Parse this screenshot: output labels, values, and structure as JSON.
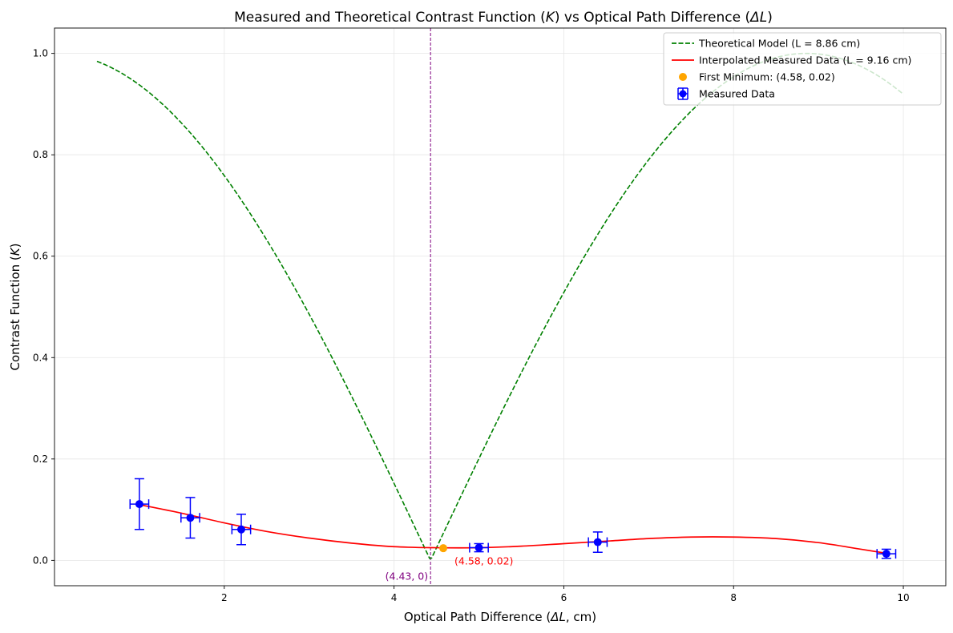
{
  "chart_data": {
    "type": "line",
    "title": "Measured and Theoretical Contrast Function (K) vs Optical Path Difference (ΔL)",
    "xlabel": "Optical Path Difference (ΔL, cm)",
    "ylabel": "Contrast Function (K)",
    "xlim": [
      0.0,
      10.5
    ],
    "ylim": [
      -0.05,
      1.05
    ],
    "x_ticks": [
      2,
      4,
      6,
      8,
      10
    ],
    "x_tick_labels": [
      "2",
      "4",
      "6",
      "8",
      "10"
    ],
    "y_ticks": [
      0.0,
      0.2,
      0.4,
      0.6,
      0.8,
      1.0
    ],
    "y_tick_labels": [
      "0.0",
      "0.2",
      "0.4",
      "0.6",
      "0.8",
      "1.0"
    ],
    "grid": true,
    "legend_position": "top-right",
    "series": [
      {
        "name": "Theoretical Model (L = 8.86 cm)",
        "kind": "line",
        "style": "dashed",
        "color": "#008000",
        "x_range": [
          0.5,
          10.0
        ],
        "model": "|cos(pi * x / 8.86)|"
      },
      {
        "name": "Interpolated Measured Data (L = 9.16 cm)",
        "kind": "line",
        "style": "solid",
        "color": "#ff0000",
        "x": [
          1.0,
          1.5,
          2.0,
          2.5,
          3.0,
          3.5,
          4.0,
          4.5,
          5.0,
          5.5,
          6.0,
          6.5,
          7.0,
          7.5,
          8.0,
          8.5,
          9.0,
          9.5,
          9.8
        ],
        "y": [
          0.11,
          0.093,
          0.074,
          0.057,
          0.044,
          0.034,
          0.027,
          0.025,
          0.025,
          0.028,
          0.033,
          0.038,
          0.043,
          0.046,
          0.046,
          0.043,
          0.035,
          0.022,
          0.014
        ]
      },
      {
        "name": "First Minimum: (4.58, 0.02)",
        "kind": "scatter",
        "color": "#ffa500",
        "x": [
          4.58
        ],
        "y": [
          0.024
        ]
      },
      {
        "name": "Measured Data",
        "kind": "errorbar",
        "color": "#0000ff",
        "x": [
          1.0,
          1.6,
          2.2,
          5.0,
          6.4,
          9.8
        ],
        "y": [
          0.111,
          0.084,
          0.061,
          0.025,
          0.036,
          0.013
        ],
        "xerr": [
          0.11,
          0.11,
          0.11,
          0.11,
          0.11,
          0.11
        ],
        "yerr": [
          0.05,
          0.04,
          0.03,
          0.008,
          0.02,
          0.009
        ]
      }
    ],
    "vertical_line": {
      "x": 4.43,
      "color": "#800080",
      "style": "dashed"
    },
    "annotations": [
      {
        "text": "(4.43, 0)",
        "x": 4.43,
        "y": 0.0,
        "color": "#800080"
      },
      {
        "text": "(4.58, 0.02)",
        "x": 4.58,
        "y": 0.02,
        "color": "#ff0000"
      }
    ]
  }
}
